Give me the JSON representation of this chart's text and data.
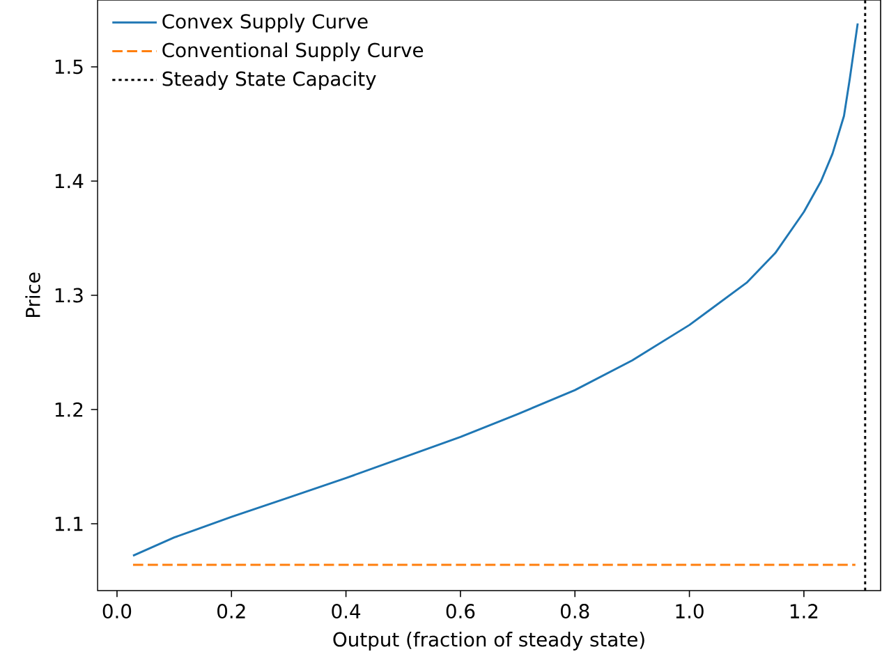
{
  "chart_data": {
    "type": "line",
    "xlabel": "Output (fraction of steady state)",
    "ylabel": "Price",
    "xlim": [
      -0.034,
      1.334
    ],
    "ylim": [
      1.0415,
      1.5585
    ],
    "xticks": [
      {
        "value": 0,
        "label": "0.0"
      },
      0.2,
      0.4,
      0.6,
      0.8,
      {
        "value": 1,
        "label": "1.0"
      },
      1.2
    ],
    "yticks": [
      1.1,
      1.2,
      1.3,
      1.4,
      1.5
    ],
    "grid": false,
    "legend": "top left",
    "series": [
      {
        "name": "Convex Supply Curve",
        "color": "#1f77b4",
        "line_style": "solid",
        "x": [
          0.028,
          0.1,
          0.2,
          0.3,
          0.4,
          0.5,
          0.6,
          0.7,
          0.8,
          0.9,
          1.0,
          1.1,
          1.15,
          1.2,
          1.23,
          1.25,
          1.27,
          1.28,
          1.294
        ],
        "values": [
          1.072,
          1.088,
          1.106,
          1.123,
          1.14,
          1.158,
          1.176,
          1.196,
          1.217,
          1.243,
          1.274,
          1.311,
          1.337,
          1.373,
          1.4,
          1.424,
          1.457,
          1.489,
          1.538
        ]
      },
      {
        "name": "Conventional Supply Curve",
        "color": "#ff7f0e",
        "line_style": "dashed",
        "x": [
          0.028,
          1.29
        ],
        "values": [
          1.064,
          1.064
        ]
      },
      {
        "name": "Steady State Capacity",
        "color": "#000000",
        "line_style": "dotted",
        "x": [
          1.307,
          1.307
        ],
        "values": [
          1.0415,
          1.5585
        ]
      }
    ]
  }
}
